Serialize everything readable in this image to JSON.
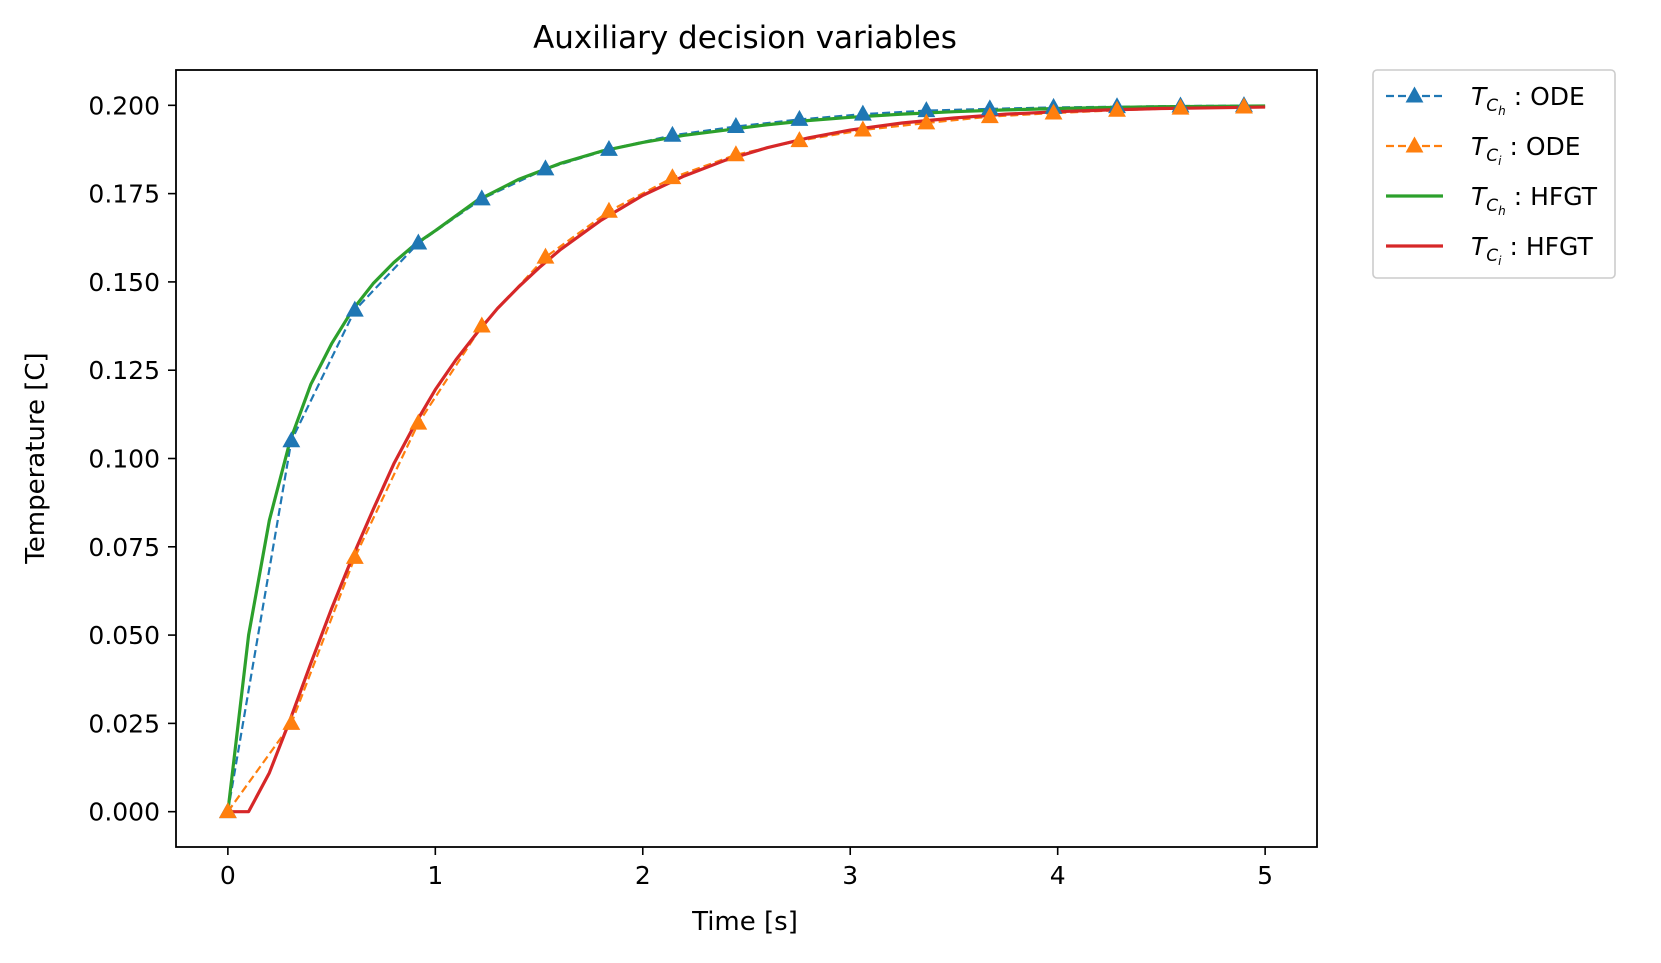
{
  "chart_data": {
    "type": "line",
    "title": "Auxiliary decision variables",
    "xlabel": "Time [s]",
    "ylabel": "Temperature [C]",
    "xlim": [
      -0.25,
      5.25
    ],
    "ylim": [
      -0.01,
      0.21
    ],
    "xticks": [
      0,
      1,
      2,
      3,
      4,
      5
    ],
    "xtick_labels": [
      "0",
      "1",
      "2",
      "3",
      "4",
      "5"
    ],
    "yticks": [
      0.0,
      0.025,
      0.05,
      0.075,
      0.1,
      0.125,
      0.15,
      0.175,
      0.2
    ],
    "ytick_labels": [
      "0.000",
      "0.025",
      "0.050",
      "0.075",
      "0.100",
      "0.125",
      "0.150",
      "0.175",
      "0.200"
    ],
    "grid": false,
    "legend_position": "outside-top-right",
    "series": [
      {
        "name": "T_{C_h} : ODE",
        "legend_main": "T",
        "legend_sub": "C",
        "legend_subsub": "h",
        "legend_suffix": " : ODE",
        "color": "#1f77b4",
        "style": "dashed",
        "marker": "triangle",
        "x": [
          0,
          0.306,
          0.612,
          0.918,
          1.224,
          1.531,
          1.837,
          2.143,
          2.449,
          2.755,
          3.061,
          3.367,
          3.673,
          3.98,
          4.286,
          4.592,
          4.898
        ],
        "y": [
          0.0,
          0.105,
          0.142,
          0.161,
          0.1735,
          0.182,
          0.1875,
          0.1915,
          0.194,
          0.196,
          0.1975,
          0.1985,
          0.199,
          0.1994,
          0.1996,
          0.1998,
          0.1999
        ]
      },
      {
        "name": "T_{C_i} : ODE",
        "legend_main": "T",
        "legend_sub": "C",
        "legend_subsub": "i",
        "legend_suffix": " : ODE",
        "color": "#ff7f0e",
        "style": "dashed",
        "marker": "triangle",
        "x": [
          0,
          0.306,
          0.612,
          0.918,
          1.224,
          1.531,
          1.837,
          2.143,
          2.449,
          2.755,
          3.061,
          3.367,
          3.673,
          3.98,
          4.286,
          4.592,
          4.898
        ],
        "y": [
          0.0,
          0.025,
          0.072,
          0.11,
          0.1375,
          0.157,
          0.17,
          0.1795,
          0.186,
          0.19,
          0.193,
          0.195,
          0.1968,
          0.1978,
          0.1986,
          0.1992,
          0.1995
        ]
      },
      {
        "name": "T_{C_h} : HFGT",
        "legend_main": "T",
        "legend_sub": "C",
        "legend_subsub": "h",
        "legend_suffix": " : HFGT",
        "color": "#2ca02c",
        "style": "solid",
        "marker": "none",
        "x": [
          0,
          0.1,
          0.2,
          0.3,
          0.4,
          0.5,
          0.6,
          0.7,
          0.8,
          0.9,
          1.0,
          1.2,
          1.4,
          1.6,
          1.8,
          2.0,
          2.2,
          2.4,
          2.6,
          2.8,
          3.0,
          3.25,
          3.5,
          3.75,
          4.0,
          4.25,
          4.5,
          4.75,
          5.0
        ],
        "y": [
          0.0,
          0.05,
          0.0825,
          0.105,
          0.121,
          0.1325,
          0.142,
          0.1495,
          0.1555,
          0.1605,
          0.1645,
          0.173,
          0.179,
          0.1835,
          0.187,
          0.1895,
          0.1915,
          0.193,
          0.1945,
          0.1957,
          0.1966,
          0.1975,
          0.1982,
          0.1987,
          0.1991,
          0.1994,
          0.1996,
          0.1997,
          0.1998
        ]
      },
      {
        "name": "T_{C_i} : HFGT",
        "legend_main": "T",
        "legend_sub": "C",
        "legend_subsub": "i",
        "legend_suffix": " : HFGT",
        "color": "#d62728",
        "style": "solid",
        "marker": "none",
        "x": [
          0,
          0.1,
          0.2,
          0.3,
          0.4,
          0.5,
          0.6,
          0.7,
          0.8,
          0.9,
          1.0,
          1.1,
          1.2,
          1.3,
          1.4,
          1.5,
          1.6,
          1.8,
          2.0,
          2.2,
          2.4,
          2.6,
          2.8,
          3.0,
          3.25,
          3.5,
          3.75,
          4.0,
          4.25,
          4.5,
          4.75,
          5.0
        ],
        "y": [
          0.0,
          0.0,
          0.011,
          0.026,
          0.042,
          0.0575,
          0.072,
          0.0855,
          0.0985,
          0.1095,
          0.1195,
          0.128,
          0.1355,
          0.1425,
          0.1485,
          0.154,
          0.159,
          0.1675,
          0.1745,
          0.18,
          0.1845,
          0.188,
          0.1908,
          0.193,
          0.195,
          0.1964,
          0.1975,
          0.1982,
          0.1987,
          0.1991,
          0.1993,
          0.1995
        ]
      }
    ]
  }
}
